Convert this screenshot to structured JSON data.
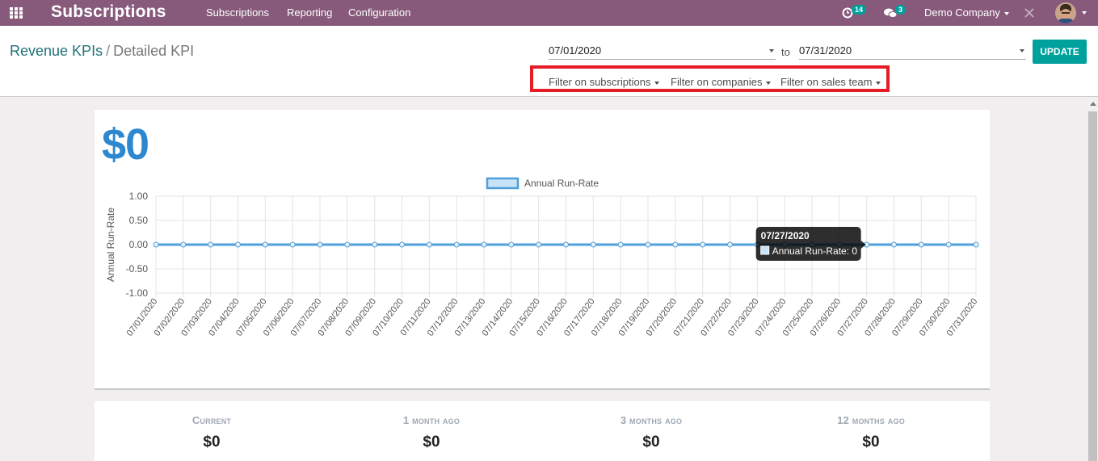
{
  "navbar": {
    "app_title": "Subscriptions",
    "menu": [
      "Subscriptions",
      "Reporting",
      "Configuration"
    ],
    "activity_badge": "14",
    "messages_badge": "3",
    "company": "Demo Company"
  },
  "breadcrumb": {
    "parent": "Revenue KPIs",
    "separator": "/",
    "current": "Detailed KPI"
  },
  "dates": {
    "start": "07/01/2020",
    "to_label": "to",
    "end": "07/31/2020",
    "update_label": "UPDATE"
  },
  "filters": [
    "Filter on subscriptions",
    "Filter on companies",
    "Filter on sales team"
  ],
  "kpi": {
    "big_value": "$0"
  },
  "chart_data": {
    "type": "line",
    "legend": "Annual Run-Rate",
    "ylabel": "Annual Run-Rate",
    "ylim": [
      -1.0,
      1.0
    ],
    "yticks": [
      "1.00",
      "0.50",
      "0.00",
      "-0.50",
      "-1.00"
    ],
    "categories": [
      "07/01/2020",
      "07/02/2020",
      "07/03/2020",
      "07/04/2020",
      "07/05/2020",
      "07/06/2020",
      "07/07/2020",
      "07/08/2020",
      "07/09/2020",
      "07/10/2020",
      "07/11/2020",
      "07/12/2020",
      "07/13/2020",
      "07/14/2020",
      "07/15/2020",
      "07/16/2020",
      "07/17/2020",
      "07/18/2020",
      "07/19/2020",
      "07/20/2020",
      "07/21/2020",
      "07/22/2020",
      "07/23/2020",
      "07/24/2020",
      "07/25/2020",
      "07/26/2020",
      "07/27/2020",
      "07/28/2020",
      "07/29/2020",
      "07/30/2020",
      "07/31/2020"
    ],
    "series": [
      {
        "name": "Annual Run-Rate",
        "values": [
          0,
          0,
          0,
          0,
          0,
          0,
          0,
          0,
          0,
          0,
          0,
          0,
          0,
          0,
          0,
          0,
          0,
          0,
          0,
          0,
          0,
          0,
          0,
          0,
          0,
          0,
          0,
          0,
          0,
          0,
          0
        ]
      }
    ],
    "tooltip": {
      "title": "07/27/2020",
      "text": "Annual Run-Rate: 0"
    },
    "color": "#4f9fdb"
  },
  "stats": [
    {
      "label": "Current",
      "value": "$0"
    },
    {
      "label": "1 month ago",
      "value": "$0"
    },
    {
      "label": "3 months ago",
      "value": "$0"
    },
    {
      "label": "12 months ago",
      "value": "$0"
    }
  ]
}
